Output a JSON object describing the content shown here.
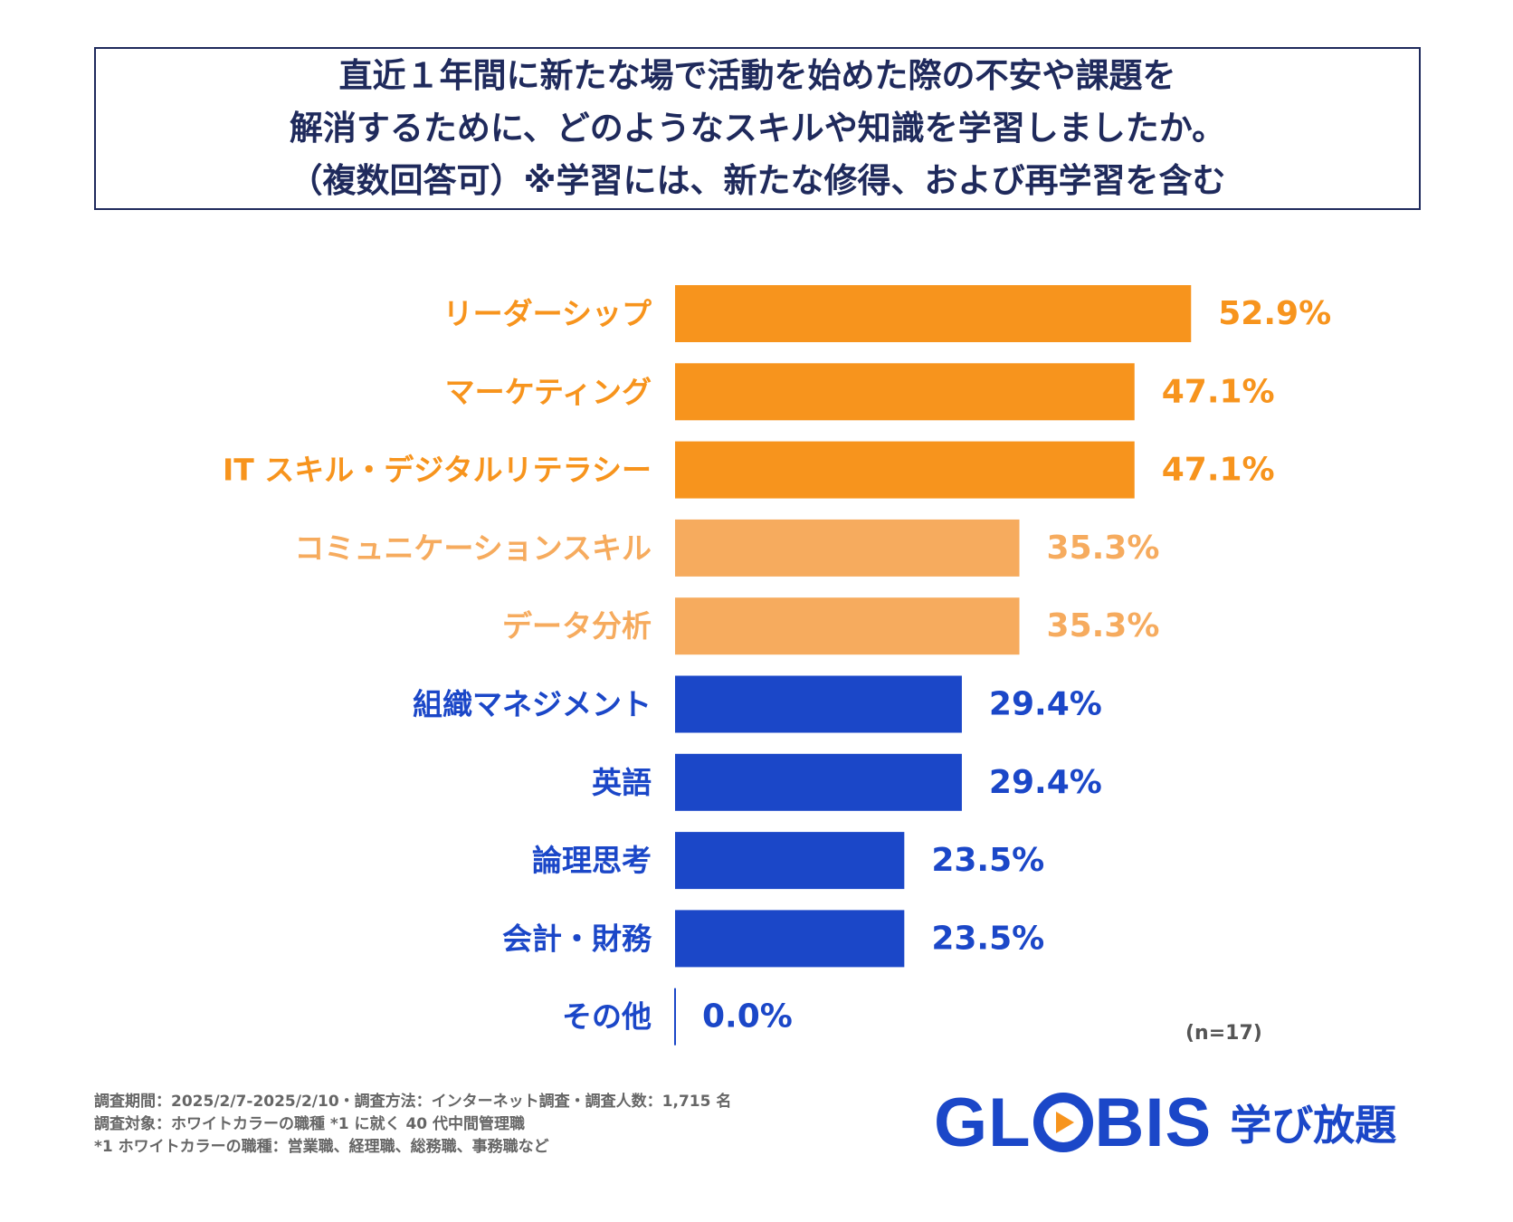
{
  "title": {
    "lines": [
      "直近１年間に新たな場で活動を始めた際の不安や課題を",
      "解消するために、どのようなスキルや知識を学習しましたか。",
      "（複数回答可）※学習には、新たな修得、および再学習を含む"
    ]
  },
  "chart_data": {
    "type": "bar",
    "orientation": "horizontal",
    "categories": [
      "リーダーシップ",
      "マーケティング",
      "IT スキル・デジタルリテラシー",
      "コミュニケーションスキル",
      "データ分析",
      "組織マネジメント",
      "英語",
      "論理思考",
      "会計・財務",
      "その他"
    ],
    "values": [
      52.9,
      47.1,
      47.1,
      35.3,
      35.3,
      29.4,
      29.4,
      23.5,
      23.5,
      0.0
    ],
    "value_labels": [
      "52.9%",
      "47.1%",
      "47.1%",
      "35.3%",
      "35.3%",
      "29.4%",
      "29.4%",
      "23.5%",
      "23.5%",
      "0.0%"
    ],
    "groups": [
      "top",
      "top",
      "top",
      "mid",
      "mid",
      "low",
      "low",
      "low",
      "low",
      "low"
    ],
    "colors": {
      "top": "#f7941d",
      "mid": "#f6ab5e",
      "low": "#1b47c8"
    },
    "unit": "%",
    "xlim": [
      0,
      60
    ],
    "grid": false,
    "legend": "none"
  },
  "sample_note": "(n=17)",
  "footer": {
    "lines": [
      "調査期間：2025/2/7-2025/2/10・調査方法：インターネット調査・調査人数：1,715 名",
      "調査対象：ホワイトカラーの職種 *1 に就く 40 代中間管理職",
      "*1 ホワイトカラーの職種：営業職、経理職、総務職、事務職など"
    ]
  },
  "logo": {
    "brand_start": "GL",
    "brand_end": "BIS",
    "subtitle": "学び放題",
    "play_icon": "play-triangle-icon",
    "color": "#1b47c8"
  }
}
